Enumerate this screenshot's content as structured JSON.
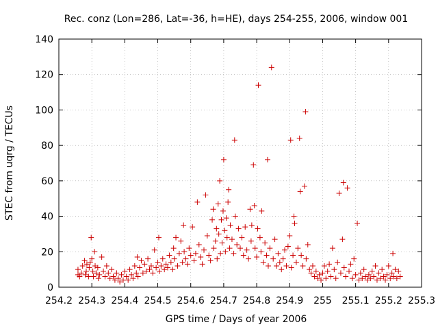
{
  "chart_data": {
    "type": "scatter",
    "title": "Rec. conz (Lon=286, Lat=-36, h=HE), days 254-255, 2006, window 001",
    "xlabel": "GPS time / Days of year 2006",
    "ylabel": "STEC from uqrg / TECUs",
    "xlim": [
      254.2,
      255.3
    ],
    "ylim": [
      0,
      140
    ],
    "xticks": [
      254.2,
      254.3,
      254.4,
      254.5,
      254.6,
      254.7,
      254.8,
      254.9,
      255,
      255.1,
      255.2,
      255.3
    ],
    "xtick_labels": [
      "254.2",
      "254.3",
      "254.4",
      "254.5",
      "254.6",
      "254.7",
      "254.8",
      "254.9",
      "255",
      "255.1",
      "255.2",
      "255.3"
    ],
    "yticks": [
      0,
      20,
      40,
      60,
      80,
      100,
      120,
      140
    ],
    "ytick_labels": [
      "0",
      "20",
      "40",
      "60",
      "80",
      "100",
      "120",
      "140"
    ],
    "grid": true,
    "legend": "none",
    "marker": "plus",
    "color": "#cc0000",
    "points": [
      [
        254.258,
        7
      ],
      [
        254.258,
        10
      ],
      [
        254.263,
        6
      ],
      [
        254.268,
        8
      ],
      [
        254.272,
        12
      ],
      [
        254.278,
        15
      ],
      [
        254.28,
        7
      ],
      [
        254.283,
        9
      ],
      [
        254.285,
        13
      ],
      [
        254.29,
        6
      ],
      [
        254.292,
        11
      ],
      [
        254.295,
        14
      ],
      [
        254.298,
        28
      ],
      [
        254.3,
        16
      ],
      [
        254.303,
        9
      ],
      [
        254.305,
        6
      ],
      [
        254.308,
        20
      ],
      [
        254.31,
        12
      ],
      [
        254.313,
        8
      ],
      [
        254.318,
        11
      ],
      [
        254.32,
        5
      ],
      [
        254.323,
        7
      ],
      [
        254.33,
        17
      ],
      [
        254.335,
        9
      ],
      [
        254.34,
        6
      ],
      [
        254.345,
        12
      ],
      [
        254.35,
        8
      ],
      [
        254.355,
        5
      ],
      [
        254.36,
        10
      ],
      [
        254.365,
        6
      ],
      [
        254.37,
        4
      ],
      [
        254.375,
        8
      ],
      [
        254.38,
        5
      ],
      [
        254.385,
        3
      ],
      [
        254.39,
        7
      ],
      [
        254.395,
        4
      ],
      [
        254.4,
        9
      ],
      [
        254.405,
        6
      ],
      [
        254.41,
        4
      ],
      [
        254.415,
        10
      ],
      [
        254.42,
        7
      ],
      [
        254.425,
        5
      ],
      [
        254.43,
        12
      ],
      [
        254.435,
        8
      ],
      [
        254.438,
        17
      ],
      [
        254.44,
        6
      ],
      [
        254.445,
        11
      ],
      [
        254.45,
        15
      ],
      [
        254.455,
        8
      ],
      [
        254.46,
        13
      ],
      [
        254.465,
        9
      ],
      [
        254.47,
        16
      ],
      [
        254.475,
        10
      ],
      [
        254.48,
        12
      ],
      [
        254.485,
        8
      ],
      [
        254.49,
        21
      ],
      [
        254.495,
        11
      ],
      [
        254.5,
        14
      ],
      [
        254.503,
        28
      ],
      [
        254.505,
        9
      ],
      [
        254.51,
        12
      ],
      [
        254.515,
        16
      ],
      [
        254.52,
        10
      ],
      [
        254.525,
        13
      ],
      [
        254.53,
        11
      ],
      [
        254.535,
        18
      ],
      [
        254.54,
        14
      ],
      [
        254.545,
        10
      ],
      [
        254.548,
        22
      ],
      [
        254.55,
        16
      ],
      [
        254.555,
        28
      ],
      [
        254.56,
        12
      ],
      [
        254.565,
        19
      ],
      [
        254.57,
        26
      ],
      [
        254.575,
        14
      ],
      [
        254.578,
        35
      ],
      [
        254.58,
        20
      ],
      [
        254.585,
        16
      ],
      [
        254.59,
        13
      ],
      [
        254.595,
        22
      ],
      [
        254.6,
        18
      ],
      [
        254.605,
        34
      ],
      [
        254.61,
        15
      ],
      [
        254.615,
        19
      ],
      [
        254.62,
        48
      ],
      [
        254.625,
        24
      ],
      [
        254.63,
        17
      ],
      [
        254.635,
        13
      ],
      [
        254.64,
        21
      ],
      [
        254.645,
        52
      ],
      [
        254.65,
        29
      ],
      [
        254.655,
        18
      ],
      [
        254.66,
        15
      ],
      [
        254.665,
        38
      ],
      [
        254.668,
        44
      ],
      [
        254.67,
        22
      ],
      [
        254.675,
        26
      ],
      [
        254.678,
        33
      ],
      [
        254.68,
        16
      ],
      [
        254.683,
        47
      ],
      [
        254.685,
        30
      ],
      [
        254.688,
        60
      ],
      [
        254.69,
        19
      ],
      [
        254.693,
        38
      ],
      [
        254.695,
        25
      ],
      [
        254.698,
        43
      ],
      [
        254.7,
        72
      ],
      [
        254.703,
        32
      ],
      [
        254.705,
        20
      ],
      [
        254.708,
        39
      ],
      [
        254.71,
        28
      ],
      [
        254.713,
        48
      ],
      [
        254.715,
        55
      ],
      [
        254.718,
        22
      ],
      [
        254.72,
        35
      ],
      [
        254.725,
        27
      ],
      [
        254.73,
        19
      ],
      [
        254.733,
        83
      ],
      [
        254.735,
        40
      ],
      [
        254.74,
        24
      ],
      [
        254.745,
        33
      ],
      [
        254.75,
        22
      ],
      [
        254.755,
        28
      ],
      [
        254.76,
        18
      ],
      [
        254.765,
        34
      ],
      [
        254.77,
        21
      ],
      [
        254.775,
        16
      ],
      [
        254.78,
        44
      ],
      [
        254.783,
        26
      ],
      [
        254.785,
        35
      ],
      [
        254.79,
        69
      ],
      [
        254.793,
        46
      ],
      [
        254.795,
        22
      ],
      [
        254.8,
        17
      ],
      [
        254.803,
        33
      ],
      [
        254.805,
        114
      ],
      [
        254.81,
        28
      ],
      [
        254.813,
        20
      ],
      [
        254.815,
        43
      ],
      [
        254.82,
        14
      ],
      [
        254.825,
        25
      ],
      [
        254.83,
        18
      ],
      [
        254.833,
        72
      ],
      [
        254.835,
        12
      ],
      [
        254.84,
        22
      ],
      [
        254.845,
        124
      ],
      [
        254.85,
        16
      ],
      [
        254.855,
        27
      ],
      [
        254.86,
        12
      ],
      [
        254.865,
        19
      ],
      [
        254.87,
        14
      ],
      [
        254.875,
        10
      ],
      [
        254.88,
        16
      ],
      [
        254.885,
        21
      ],
      [
        254.89,
        12
      ],
      [
        254.895,
        23
      ],
      [
        254.9,
        29
      ],
      [
        254.903,
        83
      ],
      [
        254.905,
        11
      ],
      [
        254.91,
        18
      ],
      [
        254.913,
        40
      ],
      [
        254.915,
        36
      ],
      [
        254.92,
        14
      ],
      [
        254.925,
        22
      ],
      [
        254.93,
        84
      ],
      [
        254.932,
        54
      ],
      [
        254.935,
        18
      ],
      [
        254.94,
        12
      ],
      [
        254.945,
        57
      ],
      [
        254.948,
        99
      ],
      [
        254.95,
        16
      ],
      [
        254.955,
        24
      ],
      [
        254.96,
        10
      ],
      [
        254.965,
        8
      ],
      [
        254.97,
        12
      ],
      [
        254.975,
        6
      ],
      [
        254.98,
        9
      ],
      [
        254.985,
        5
      ],
      [
        254.99,
        7
      ],
      [
        254.995,
        4
      ],
      [
        255.0,
        8
      ],
      [
        255.005,
        12
      ],
      [
        255.01,
        5
      ],
      [
        255.015,
        9
      ],
      [
        255.02,
        13
      ],
      [
        255.025,
        6
      ],
      [
        255.03,
        22
      ],
      [
        255.035,
        10
      ],
      [
        255.04,
        5
      ],
      [
        255.045,
        14
      ],
      [
        255.05,
        53
      ],
      [
        255.055,
        8
      ],
      [
        255.06,
        27
      ],
      [
        255.063,
        59
      ],
      [
        255.065,
        11
      ],
      [
        255.07,
        6
      ],
      [
        255.075,
        56
      ],
      [
        255.08,
        9
      ],
      [
        255.085,
        13
      ],
      [
        255.09,
        5
      ],
      [
        255.095,
        16
      ],
      [
        255.1,
        7
      ],
      [
        255.105,
        36
      ],
      [
        255.11,
        4
      ],
      [
        255.115,
        8
      ],
      [
        255.12,
        5
      ],
      [
        255.125,
        10
      ],
      [
        255.13,
        6
      ],
      [
        255.135,
        4
      ],
      [
        255.14,
        7
      ],
      [
        255.145,
        5
      ],
      [
        255.15,
        9
      ],
      [
        255.155,
        6
      ],
      [
        255.16,
        12
      ],
      [
        255.165,
        4
      ],
      [
        255.17,
        8
      ],
      [
        255.175,
        5
      ],
      [
        255.18,
        10
      ],
      [
        255.185,
        6
      ],
      [
        255.19,
        4
      ],
      [
        255.195,
        7
      ],
      [
        255.2,
        12
      ],
      [
        255.205,
        5
      ],
      [
        255.21,
        8
      ],
      [
        255.213,
        19
      ],
      [
        255.215,
        6
      ],
      [
        255.22,
        10
      ],
      [
        255.225,
        5
      ],
      [
        255.23,
        9
      ],
      [
        255.235,
        6
      ]
    ]
  }
}
